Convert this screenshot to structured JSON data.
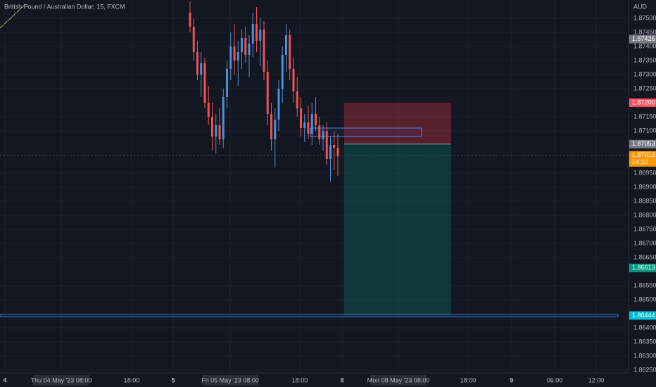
{
  "header": {
    "title": "British Pound / Australian Dollar, 15, FXCM"
  },
  "price_axis": {
    "unit": "AUD",
    "ticks": [
      {
        "value": 1.875,
        "label": "1.87500"
      },
      {
        "value": 1.8745,
        "label": "1.87450"
      },
      {
        "value": 1.874,
        "label": "1.87400"
      },
      {
        "value": 1.8735,
        "label": "1.87350"
      },
      {
        "value": 1.873,
        "label": "1.87300"
      },
      {
        "value": 1.8725,
        "label": "1.87250"
      },
      {
        "value": 1.8715,
        "label": "1.87150"
      },
      {
        "value": 1.871,
        "label": "1.87100"
      },
      {
        "value": 1.8695,
        "label": "1.86950"
      },
      {
        "value": 1.869,
        "label": "1.86900"
      },
      {
        "value": 1.8685,
        "label": "1.86850"
      },
      {
        "value": 1.868,
        "label": "1.86800"
      },
      {
        "value": 1.8675,
        "label": "1.86750"
      },
      {
        "value": 1.867,
        "label": "1.86700"
      },
      {
        "value": 1.8665,
        "label": "1.86650"
      },
      {
        "value": 1.8655,
        "label": "1.86550"
      },
      {
        "value": 1.865,
        "label": "1.86500"
      },
      {
        "value": 1.864,
        "label": "1.86400"
      },
      {
        "value": 1.8635,
        "label": "1.86350"
      },
      {
        "value": 1.863,
        "label": "1.86300"
      },
      {
        "value": 1.8625,
        "label": "1.86250"
      }
    ],
    "badges": [
      {
        "value": 1.87426,
        "label": "1.87426",
        "color": "#787b86"
      },
      {
        "value": 1.872,
        "label": "1.87200",
        "color": "#f7525f"
      },
      {
        "value": 1.87053,
        "label": "1.87053",
        "color": "#787b86"
      },
      {
        "value": 1.87013,
        "label": "1.87013",
        "sublabel": "14:10",
        "color": "#ff9800"
      },
      {
        "value": 1.86613,
        "label": "1.86613",
        "color": "#089981"
      },
      {
        "value": 1.86444,
        "label": "1.86444",
        "color": "#00bcd4"
      }
    ]
  },
  "time_axis": {
    "labels": [
      "4",
      "Thu 04 May '23  08:00",
      "18:00",
      "5",
      "Fri 05 May '23  08:00",
      "18:00",
      "8",
      "Mon 08 May '23  08:00",
      "18:00",
      "9",
      "06:00",
      "12:00"
    ]
  },
  "candles": [
    [
      1.8752,
      1.8756,
      1.8745,
      1.8747
    ],
    [
      1.8747,
      1.875,
      1.8735,
      1.8738
    ],
    [
      1.8738,
      1.8742,
      1.8728,
      1.873
    ],
    [
      1.873,
      1.8738,
      1.8722,
      1.8734
    ],
    [
      1.8734,
      1.8736,
      1.8718,
      1.872
    ],
    [
      1.872,
      1.8726,
      1.8712,
      1.8715
    ],
    [
      1.8715,
      1.872,
      1.8703,
      1.8708
    ],
    [
      1.8708,
      1.8716,
      1.8702,
      1.8712
    ],
    [
      1.8712,
      1.8718,
      1.8705,
      1.8707
    ],
    [
      1.8707,
      1.8725,
      1.8704,
      1.8722
    ],
    [
      1.8722,
      1.8735,
      1.8718,
      1.8732
    ],
    [
      1.8732,
      1.8745,
      1.8728,
      1.874
    ],
    [
      1.874,
      1.8748,
      1.873,
      1.8735
    ],
    [
      1.8735,
      1.8742,
      1.8726,
      1.8738
    ],
    [
      1.8738,
      1.8746,
      1.8732,
      1.8743
    ],
    [
      1.8743,
      1.8747,
      1.8734,
      1.8737
    ],
    [
      1.8737,
      1.8744,
      1.8729,
      1.8741
    ],
    [
      1.8741,
      1.8752,
      1.8736,
      1.8748
    ],
    [
      1.8748,
      1.8754,
      1.8738,
      1.8742
    ],
    [
      1.8742,
      1.875,
      1.8733,
      1.8746
    ],
    [
      1.8746,
      1.8749,
      1.8728,
      1.8731
    ],
    [
      1.8731,
      1.8735,
      1.8712,
      1.8716
    ],
    [
      1.8716,
      1.872,
      1.8703,
      1.8707
    ],
    [
      1.8707,
      1.8718,
      1.8697,
      1.8714
    ],
    [
      1.8714,
      1.8728,
      1.871,
      1.8725
    ],
    [
      1.8725,
      1.874,
      1.872,
      1.8737
    ],
    [
      1.8737,
      1.8748,
      1.8731,
      1.8744
    ],
    [
      1.8744,
      1.8746,
      1.8728,
      1.8732
    ],
    [
      1.8732,
      1.8736,
      1.872,
      1.8724
    ],
    [
      1.8724,
      1.8729,
      1.8715,
      1.8718
    ],
    [
      1.8718,
      1.8722,
      1.8708,
      1.8711
    ],
    [
      1.8711,
      1.8716,
      1.8706,
      1.8713
    ],
    [
      1.8713,
      1.8719,
      1.8707,
      1.8709
    ],
    [
      1.8709,
      1.872,
      1.8705,
      1.8716
    ],
    [
      1.8716,
      1.8722,
      1.871,
      1.8712
    ],
    [
      1.8712,
      1.8715,
      1.8705,
      1.8707
    ],
    [
      1.8707,
      1.8712,
      1.8703,
      1.871
    ],
    [
      1.871,
      1.8713,
      1.8698,
      1.87
    ],
    [
      1.87,
      1.8708,
      1.8692,
      1.8705
    ],
    [
      1.8705,
      1.871,
      1.8696,
      1.8704
    ],
    [
      1.8704,
      1.8709,
      1.8694,
      1.8701
    ]
  ],
  "zone": [
    1.8711,
    1.8708
  ],
  "colors": {
    "up": "#4f8fd8",
    "down": "#ef5350"
  }
}
